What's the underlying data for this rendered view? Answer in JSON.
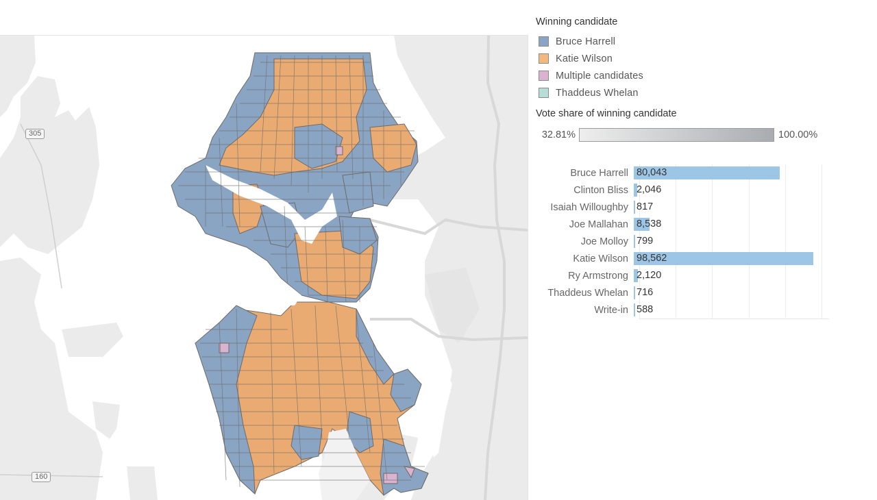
{
  "legend": {
    "title": "Winning candidate",
    "items": [
      {
        "label": "Bruce Harrell",
        "color": "#8AA4C4"
      },
      {
        "label": "Katie Wilson",
        "color": "#F2B87E"
      },
      {
        "label": "Multiple candidates",
        "color": "#D9B3CF"
      },
      {
        "label": "Thaddeus Whelan",
        "color": "#B7DDD6"
      }
    ]
  },
  "vote_share": {
    "title": "Vote share of winning candidate",
    "min_label": "32.81%",
    "max_label": "100.00%",
    "gradient_start": "#eeeeee",
    "gradient_end": "#a9acb0"
  },
  "map": {
    "highway_shields": [
      "305",
      "160"
    ],
    "colors": {
      "harrell": "#8AA4C4",
      "wilson": "#E9AB72",
      "multiple": "#D9B3CF",
      "whelan": "#B7DDD6",
      "land": "#ebebeb",
      "water": "#ffffff",
      "road": "#d6d6d6",
      "precinct_border": "#6e6a66"
    }
  },
  "chart_data": {
    "type": "bar",
    "orientation": "horizontal",
    "title": "",
    "categories": [
      "Bruce Harrell",
      "Clinton Bliss",
      "Isaiah Willoughby",
      "Joe Mallahan",
      "Joe Molloy",
      "Katie Wilson",
      "Ry Armstrong",
      "Thaddeus Whelan",
      "Write-in"
    ],
    "values": [
      80043,
      2046,
      817,
      8538,
      799,
      98562,
      2120,
      716,
      588
    ],
    "value_labels": [
      "80,043",
      "2,046",
      "817",
      "8,538",
      "799",
      "98,562",
      "2,120",
      "716",
      "588"
    ],
    "xlabel": "",
    "ylabel": "",
    "xlim": [
      0,
      100000
    ],
    "grid": true,
    "gridline_values": [
      0,
      20000,
      40000,
      60000,
      80000,
      100000
    ],
    "bar_color": "#9DC6E6",
    "legend": "none"
  }
}
